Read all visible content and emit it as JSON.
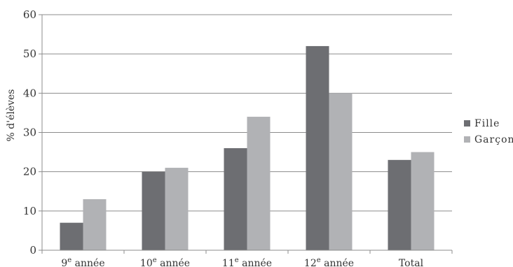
{
  "chart_data": {
    "type": "bar",
    "title": "",
    "xlabel": "",
    "ylabel": "% d'élèves",
    "ylim": [
      0,
      60
    ],
    "yticks": [
      0,
      10,
      20,
      30,
      40,
      50,
      60
    ],
    "grid": true,
    "legend_position": "right",
    "categories": [
      {
        "base": "9",
        "sup": "e",
        "rest": " année"
      },
      {
        "base": "10",
        "sup": "e",
        "rest": " année"
      },
      {
        "base": "11",
        "sup": "e",
        "rest": " année"
      },
      {
        "base": "12",
        "sup": "e",
        "rest": " année"
      },
      {
        "base": "Total",
        "sup": "",
        "rest": ""
      }
    ],
    "series": [
      {
        "name": "Fille",
        "color": "#6d6e72",
        "values": [
          7,
          20,
          26,
          52,
          23
        ]
      },
      {
        "name": "Garçon",
        "color": "#b1b2b5",
        "values": [
          13,
          21,
          34,
          40,
          25
        ]
      }
    ]
  }
}
